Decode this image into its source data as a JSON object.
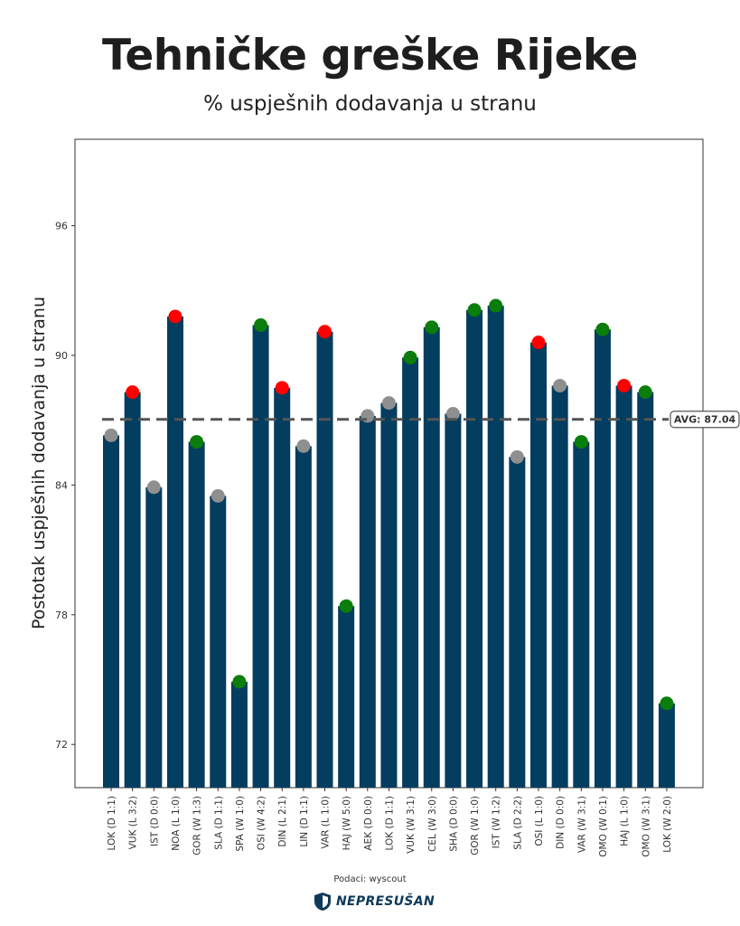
{
  "header": {
    "title": "Tehničke greške Rijeke",
    "subtitle": "% uspješnih dodavanja u stranu"
  },
  "footer": {
    "source": "Podaci: wyscout",
    "logo_text": "NEPRESUŠAN"
  },
  "colors": {
    "bar": "#033d5f",
    "win": "#0a7d0a",
    "draw": "#8f8f8f",
    "loss": "#ff0000",
    "avg_line": "#555555"
  },
  "chart_data": {
    "type": "bar",
    "title": "Tehničke greške Rijeke",
    "subtitle": "% uspješnih dodavanja u stranu",
    "xlabel": "",
    "ylabel": "Postotak uspješnih dodavanja u stranu",
    "ylim": [
      70,
      100
    ],
    "yticks": [
      72,
      78,
      84,
      90,
      96
    ],
    "grid": false,
    "categories": [
      "LOK (D 1:1)",
      "VUK (L 3:2)",
      "IST (D 0:0)",
      "NOA (L 1:0)",
      "GOR (W 1:3)",
      "SLA (D 1:1)",
      "SPA (W 1:0)",
      "OSI (W 4:2)",
      "DIN (L 2:1)",
      "LIN (D 1:1)",
      "VAR (L 1:0)",
      "HAJ (W 5:0)",
      "AEK (D 0:0)",
      "LOK (D 1:1)",
      "VUK (W 3:1)",
      "CEL (W 3:0)",
      "SHA (D 0:0)",
      "GOR (W 1:0)",
      "IST (W 1:2)",
      "SLA (D 2:2)",
      "OSI (L 1:0)",
      "DIN (D 0:0)",
      "VAR (W 3:1)",
      "OMO (W 0:1)",
      "HAJ (L 1:0)",
      "OMO (W 3:1)",
      "LOK (W 2:0)"
    ],
    "values": [
      86.3,
      88.3,
      83.9,
      91.8,
      86.0,
      83.5,
      74.9,
      91.4,
      88.5,
      85.8,
      91.1,
      78.4,
      87.2,
      87.8,
      89.9,
      91.3,
      87.3,
      92.1,
      92.3,
      85.3,
      90.6,
      88.6,
      86.0,
      91.2,
      88.6,
      88.3,
      73.9
    ],
    "results": [
      "D",
      "L",
      "D",
      "L",
      "W",
      "D",
      "W",
      "W",
      "L",
      "D",
      "L",
      "W",
      "D",
      "D",
      "W",
      "W",
      "D",
      "W",
      "W",
      "D",
      "L",
      "D",
      "W",
      "W",
      "L",
      "W",
      "W"
    ],
    "average": 87.04,
    "average_label": "AVG: 87.04"
  }
}
